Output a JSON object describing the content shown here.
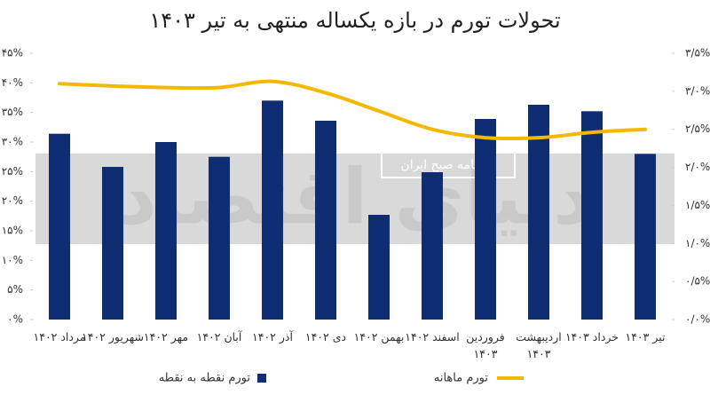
{
  "chart_data": {
    "type": "bar-line",
    "title": "تحولات تورم در بازه یکساله منتهی به تیر ۱۴۰۳",
    "watermark": "دنیای اقتصاد",
    "watermark_badge": "روزنامه صبح ایران",
    "categories": [
      "مرداد ۱۴۰۲",
      "شهریور ۱۴۰۲",
      "مهر ۱۴۰۲",
      "آبان ۱۴۰۲",
      "آذر ۱۴۰۲",
      "دی ۱۴۰۲",
      "بهمن ۱۴۰۲",
      "اسفند ۱۴۰۲",
      "فروردین ۱۴۰۳",
      "اردیبهشت ۱۴۰۳",
      "خرداد ۱۴۰۳",
      "تیر ۱۴۰۳"
    ],
    "series": [
      {
        "name": "تورم نقطه به نقطه",
        "color": "#0e2d72",
        "kind": "bar",
        "axis": "y",
        "values": [
          31.4,
          25.8,
          30.0,
          27.5,
          37.0,
          33.6,
          17.7,
          24.9,
          33.9,
          36.3,
          35.2,
          28.0
        ]
      },
      {
        "name": "تورم ماهانه",
        "color": "#f5b800",
        "kind": "line",
        "axis": "y2",
        "values": [
          3.1,
          3.07,
          3.05,
          3.05,
          3.13,
          2.98,
          2.74,
          2.5,
          2.39,
          2.39,
          2.46,
          2.5
        ]
      }
    ],
    "ylim": [
      0,
      45
    ],
    "yticks": [
      {
        "value": 0,
        "label": "۰%"
      },
      {
        "value": 5,
        "label": "۵%"
      },
      {
        "value": 10,
        "label": "۱۰%"
      },
      {
        "value": 15,
        "label": "۱۵%"
      },
      {
        "value": 20,
        "label": "۲۰%"
      },
      {
        "value": 25,
        "label": "۲۵%"
      },
      {
        "value": 30,
        "label": "۳۰%"
      },
      {
        "value": 35,
        "label": "۳۵%"
      },
      {
        "value": 40,
        "label": "۴۰%"
      },
      {
        "value": 45,
        "label": "۴۵%"
      }
    ],
    "y2lim": [
      0,
      3.5
    ],
    "y2ticks": [
      {
        "value": 0,
        "label": "۰/۰%"
      },
      {
        "value": 0.5,
        "label": "۰/۵%"
      },
      {
        "value": 1,
        "label": "۱/۰%"
      },
      {
        "value": 1.5,
        "label": "۱/۵%"
      },
      {
        "value": 2,
        "label": "۲/۰%"
      },
      {
        "value": 2.5,
        "label": "۲/۵%"
      },
      {
        "value": 3,
        "label": "۳/۰%"
      },
      {
        "value": 3.5,
        "label": "۳/۵%"
      }
    ],
    "grid": false,
    "legend": "bottom"
  }
}
